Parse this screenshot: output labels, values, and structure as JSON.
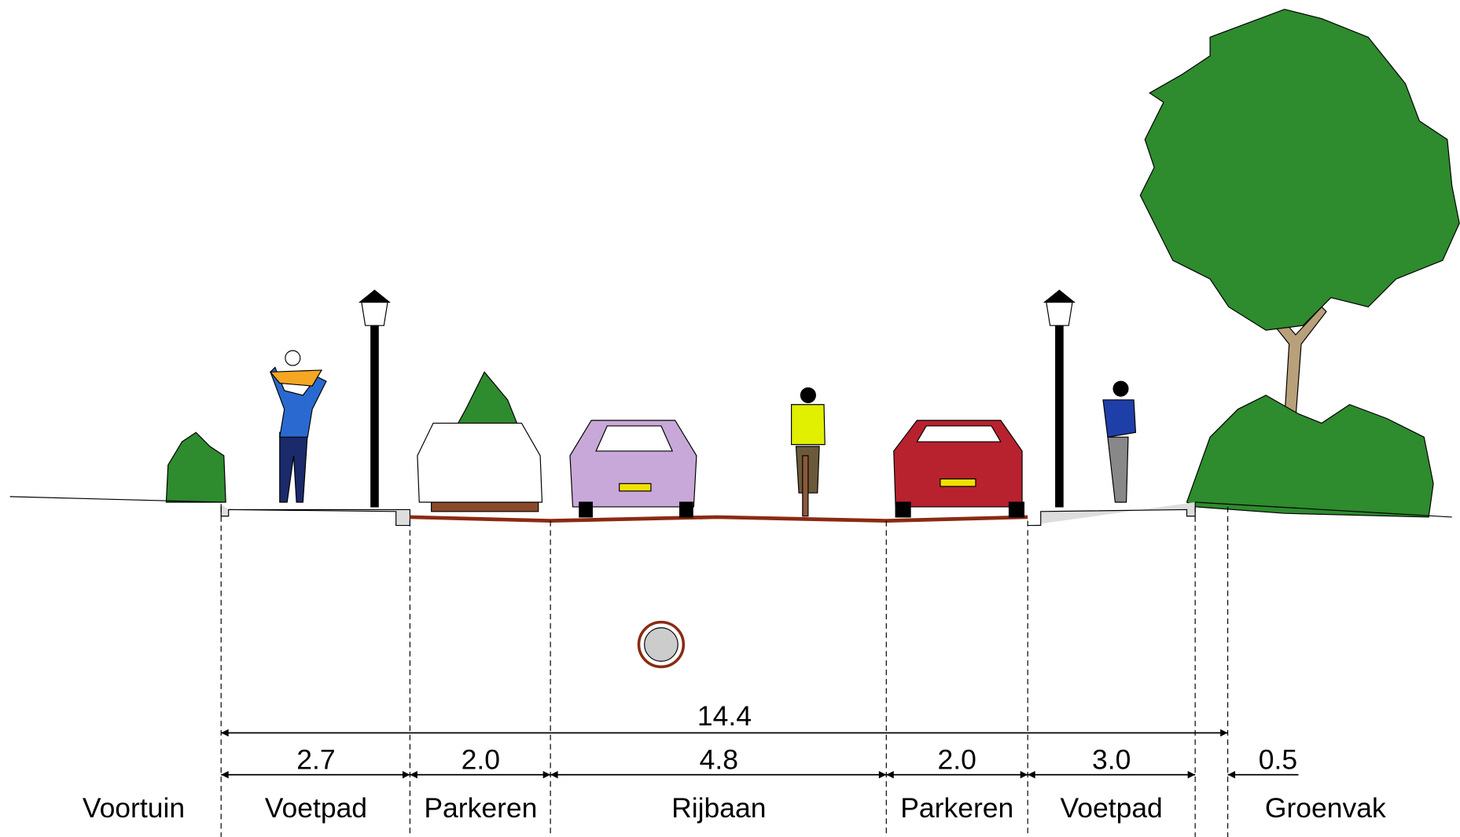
{
  "total_width": "14.4",
  "zones": [
    {
      "label": "Voortuin"
    },
    {
      "label": "Voetpad",
      "width": "2.7"
    },
    {
      "label": "Parkeren",
      "width": "2.0"
    },
    {
      "label": "Rijbaan",
      "width": "4.8"
    },
    {
      "label": "Parkeren",
      "width": "2.0"
    },
    {
      "label": "Voetpad",
      "width": "3.0"
    },
    {
      "label": "Groenvak",
      "width": "0.5"
    }
  ]
}
